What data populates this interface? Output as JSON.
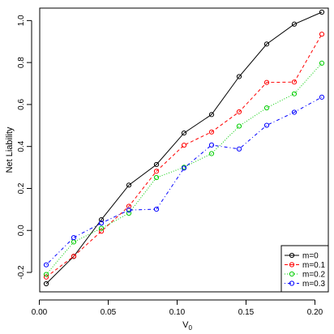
{
  "chart_data": {
    "type": "line",
    "xlabel": "V",
    "xlabel_subscript": "0",
    "ylabel": "Net Liability",
    "xlim": [
      0.005,
      0.205
    ],
    "ylim": [
      -0.254,
      1.04
    ],
    "xticks": [
      0.0,
      0.05,
      0.1,
      0.15,
      0.2
    ],
    "xtick_labels": [
      "0.00",
      "0.05",
      "0.10",
      "0.15",
      "0.20"
    ],
    "yticks": [
      -0.2,
      0.0,
      0.2,
      0.4,
      0.6,
      0.8,
      1.0
    ],
    "ytick_labels": [
      "-0.2",
      "0.0",
      "0.2",
      "0.4",
      "0.6",
      "0.8",
      "1.0"
    ],
    "legend_position": "bottom-right",
    "x": [
      0.005,
      0.025,
      0.045,
      0.065,
      0.085,
      0.105,
      0.125,
      0.145,
      0.165,
      0.185,
      0.205
    ],
    "series": [
      {
        "name": "m=0",
        "color": "#000000",
        "dash": "solid",
        "values": [
          -0.254,
          -0.124,
          0.051,
          0.216,
          0.314,
          0.464,
          0.552,
          0.733,
          0.888,
          0.983,
          1.04
        ]
      },
      {
        "name": "m=0.1",
        "color": "#ff0000",
        "dash": "dashed",
        "values": [
          -0.222,
          -0.123,
          -0.004,
          0.115,
          0.282,
          0.406,
          0.469,
          0.565,
          0.705,
          0.707,
          0.935
        ]
      },
      {
        "name": "m=0.2",
        "color": "#00cd00",
        "dash": "dotted",
        "values": [
          -0.21,
          -0.055,
          0.01,
          0.082,
          0.252,
          0.301,
          0.366,
          0.497,
          0.584,
          0.651,
          0.797
        ]
      },
      {
        "name": "m=0.3",
        "color": "#0000ff",
        "dash": "dotdash",
        "values": [
          -0.164,
          -0.034,
          0.035,
          0.097,
          0.101,
          0.297,
          0.407,
          0.388,
          0.501,
          0.563,
          0.635
        ]
      }
    ]
  }
}
